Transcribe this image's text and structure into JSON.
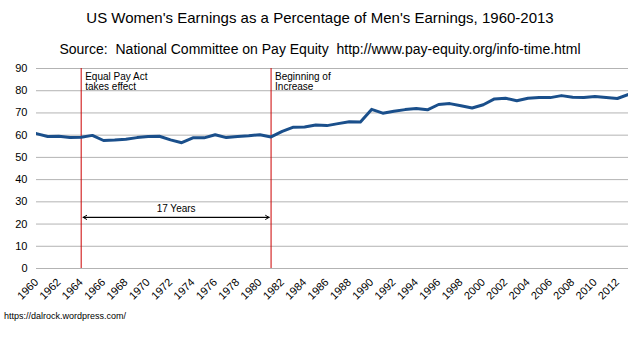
{
  "chart_data": {
    "type": "line",
    "title": "US Women's Earnings as a Percentage of Men's Earnings, 1960-2013",
    "subtitle": "Source:  National Committee on Pay Equity  http://www.pay-equity.org/info-time.html",
    "caption": "https://dalrock.wordpress.com/",
    "x": [
      1960,
      1961,
      1962,
      1963,
      1964,
      1965,
      1966,
      1967,
      1968,
      1969,
      1970,
      1971,
      1972,
      1973,
      1974,
      1975,
      1976,
      1977,
      1978,
      1979,
      1980,
      1981,
      1982,
      1983,
      1984,
      1985,
      1986,
      1987,
      1988,
      1989,
      1990,
      1991,
      1992,
      1993,
      1994,
      1995,
      1996,
      1997,
      1998,
      1999,
      2000,
      2001,
      2002,
      2003,
      2004,
      2005,
      2006,
      2007,
      2008,
      2009,
      2010,
      2011,
      2012,
      2013
    ],
    "values": [
      60.7,
      59.4,
      59.5,
      58.9,
      59.1,
      59.9,
      57.6,
      57.8,
      58.2,
      58.9,
      59.4,
      59.5,
      57.9,
      56.6,
      58.8,
      58.8,
      60.2,
      58.9,
      59.4,
      59.7,
      60.2,
      59.2,
      61.7,
      63.6,
      63.7,
      64.6,
      64.3,
      65.2,
      66.0,
      65.9,
      71.6,
      69.9,
      70.8,
      71.5,
      72.0,
      71.4,
      73.8,
      74.2,
      73.2,
      72.2,
      73.7,
      76.3,
      76.6,
      75.5,
      76.6,
      77.0,
      76.9,
      77.8,
      77.1,
      77.0,
      77.4,
      77.0,
      76.5,
      78.3
    ],
    "color": "#1a4f8b",
    "xlim": [
      1960,
      2013
    ],
    "xticks": [
      1960,
      1962,
      1964,
      1966,
      1968,
      1970,
      1972,
      1974,
      1976,
      1978,
      1980,
      1982,
      1984,
      1986,
      1988,
      1990,
      1992,
      1994,
      1996,
      1998,
      2000,
      2002,
      2004,
      2006,
      2008,
      2010,
      2012
    ],
    "ylim": [
      0,
      90
    ],
    "yticks": [
      0,
      10,
      20,
      30,
      40,
      50,
      60,
      70,
      80,
      90
    ],
    "grid": true,
    "annotations": [
      {
        "x": 1964,
        "label": "Equal Pay Act\ntakes effect",
        "color": "#cc0000"
      },
      {
        "x": 1981,
        "label": "Beginning of\nIncrease",
        "color": "#cc0000"
      }
    ],
    "span": {
      "from": 1964,
      "to": 1981,
      "y": 23,
      "label": "17 Years"
    }
  }
}
